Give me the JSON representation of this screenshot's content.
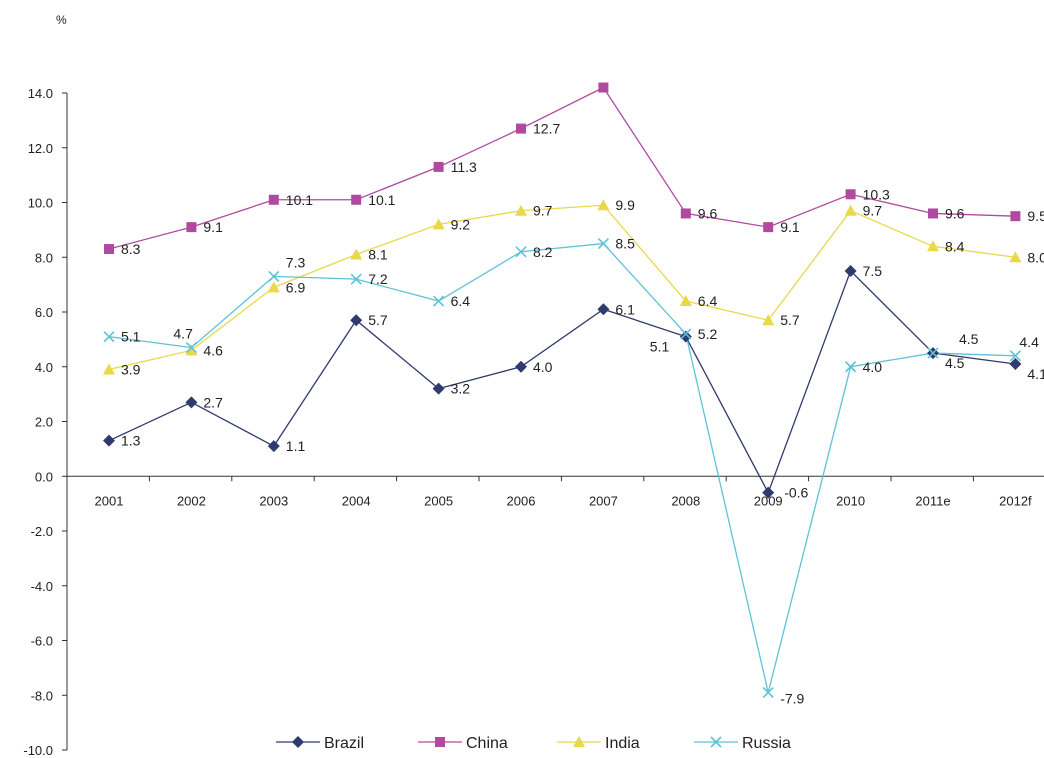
{
  "chart_data": {
    "type": "line",
    "title": "",
    "ylabel": "%",
    "xlabel": "",
    "ylim": [
      -10,
      14
    ],
    "ytick_step": 2,
    "ytick_labels": [
      "-10.0",
      "-8.0",
      "-6.0",
      "-4.0",
      "-2.0",
      "0.0",
      "2.0",
      "4.0",
      "6.0",
      "8.0",
      "10.0",
      "12.0",
      "14.0"
    ],
    "categories": [
      "2001",
      "2002",
      "2003",
      "2004",
      "2005",
      "2006",
      "2007",
      "2008",
      "2009",
      "2010",
      "2011e",
      "2012f"
    ],
    "grid": false,
    "legend_position": "bottom",
    "series": [
      {
        "name": "Brazil",
        "color": "#2f3a6e",
        "marker": "diamond",
        "values": [
          1.3,
          2.7,
          1.1,
          5.7,
          3.2,
          4.0,
          6.1,
          5.1,
          -0.6,
          7.5,
          4.5,
          4.1
        ],
        "labels": [
          "1.3",
          "2.7",
          "1.1",
          "5.7",
          "3.2",
          "4.0",
          "6.1",
          "5.1",
          "-0.6",
          "7.5",
          "4.5",
          "4.1"
        ]
      },
      {
        "name": "China",
        "color": "#b04aa0",
        "marker": "square",
        "values": [
          8.3,
          9.1,
          10.1,
          10.1,
          11.3,
          12.7,
          14.2,
          9.6,
          9.1,
          10.3,
          9.6,
          9.5
        ],
        "labels": [
          "8.3",
          "9.1",
          "10.1",
          "10.1",
          "11.3",
          "12.7",
          "",
          "9.6",
          "9.1",
          "10.3",
          "9.6",
          "9.5"
        ]
      },
      {
        "name": "India",
        "color": "#e8d84a",
        "marker": "triangle",
        "values": [
          3.9,
          4.6,
          6.9,
          8.1,
          9.2,
          9.7,
          9.9,
          6.4,
          5.7,
          9.7,
          8.4,
          8.0
        ],
        "labels": [
          "3.9",
          "4.6",
          "6.9",
          "8.1",
          "9.2",
          "9.7",
          "9.9",
          "6.4",
          "5.7",
          "9.7",
          "8.4",
          "8.0"
        ]
      },
      {
        "name": "Russia",
        "color": "#5cc3d6",
        "marker": "x",
        "values": [
          5.1,
          4.7,
          7.3,
          7.2,
          6.4,
          8.2,
          8.5,
          5.2,
          -7.9,
          4.0,
          4.5,
          4.4
        ],
        "labels": [
          "5.1",
          "4.7",
          "7.3",
          "7.2",
          "6.4",
          "8.2",
          "8.5",
          "5.2",
          "-7.9",
          "4.0",
          "4.5",
          "4.4"
        ]
      }
    ]
  }
}
